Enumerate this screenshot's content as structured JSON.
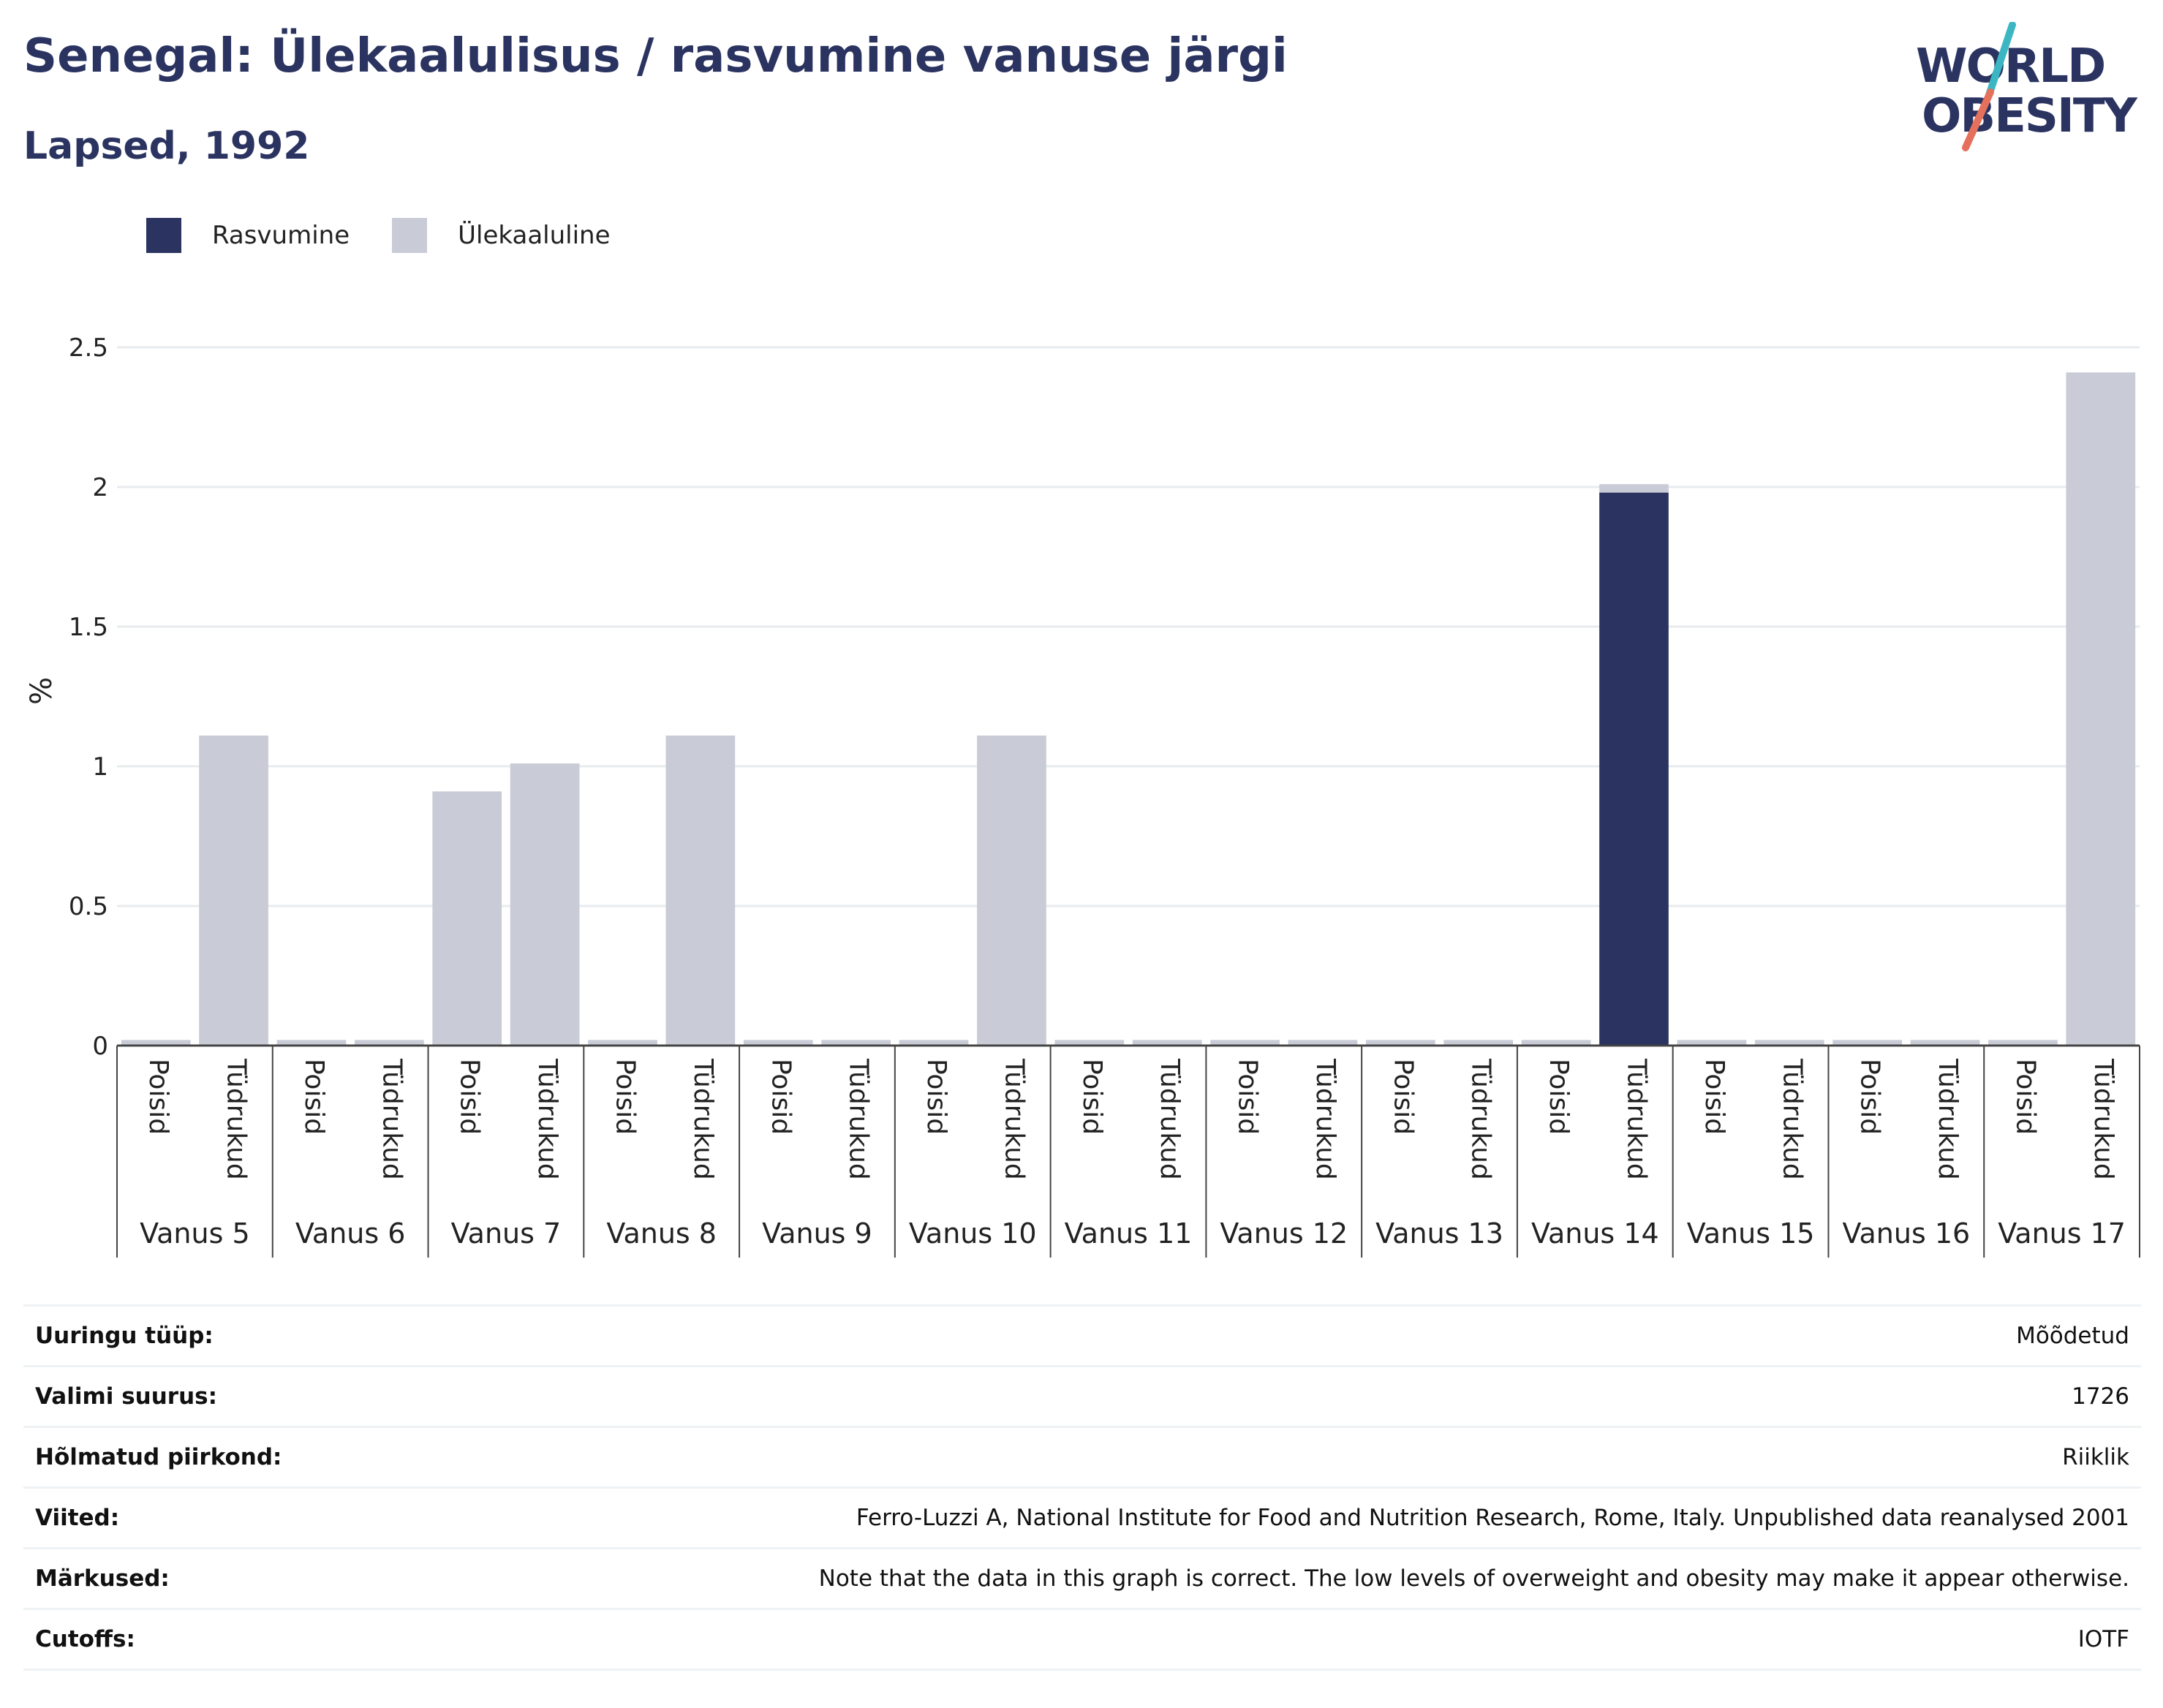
{
  "header": {
    "title": "Senegal: Ülekaalulisus / rasvumine vanuse järgi",
    "subtitle": "Lapsed, 1992",
    "logo_line1": "WORLD",
    "logo_line2": "OBESITY"
  },
  "colors": {
    "obesity": "#2b3461",
    "overweight": "#c9cbd7",
    "title": "#2b3461",
    "logo_slash_top": "#3cb6c3",
    "logo_slash_bottom": "#e5705c"
  },
  "legend": [
    {
      "label": "Rasvumine",
      "color_key": "obesity"
    },
    {
      "label": "Ülekaaluline",
      "color_key": "overweight"
    }
  ],
  "chart_data": {
    "type": "bar",
    "stacked": true,
    "title": "Senegal: Ülekaalulisus / rasvumine vanuse järgi",
    "ylabel": "%",
    "ylim": [
      0,
      2.5
    ],
    "yticks": [
      0,
      0.5,
      1,
      1.5,
      2,
      2.5
    ],
    "ytick_labels": [
      "0",
      "0.5",
      "1",
      "1.5",
      "2",
      "2.5"
    ],
    "grid": true,
    "legend_position": "top-left",
    "groups": [
      "Vanus 5",
      "Vanus 6",
      "Vanus 7",
      "Vanus 8",
      "Vanus 9",
      "Vanus 10",
      "Vanus 11",
      "Vanus 12",
      "Vanus 13",
      "Vanus 14",
      "Vanus 15",
      "Vanus 16",
      "Vanus 17"
    ],
    "subcategories": [
      "Poisid",
      "Tüdrukud"
    ],
    "series": [
      {
        "name": "Rasvumine",
        "color_key": "obesity",
        "values": [
          0,
          0,
          0,
          0,
          0,
          0,
          0,
          0,
          0,
          0,
          0,
          0,
          0,
          0,
          0,
          0,
          0,
          0,
          0,
          1.98,
          0,
          0,
          0,
          0,
          0,
          0
        ]
      },
      {
        "name": "Ülekaaluline",
        "color_key": "overweight",
        "values": [
          0.02,
          1.11,
          0.02,
          0.02,
          0.91,
          1.01,
          0.02,
          1.11,
          0.02,
          0.02,
          0.02,
          1.11,
          0.02,
          0.02,
          0.02,
          0.02,
          0.02,
          0.02,
          0.02,
          0.03,
          0.02,
          0.02,
          0.02,
          0.02,
          0.02,
          2.41
        ]
      }
    ]
  },
  "info": [
    {
      "label": "Uuringu tüüp:",
      "value": "Mõõdetud"
    },
    {
      "label": "Valimi suurus:",
      "value": "1726"
    },
    {
      "label": "Hõlmatud piirkond:",
      "value": "Riiklik"
    },
    {
      "label": "Viited:",
      "value": "Ferro-Luzzi A, National Institute for Food and Nutrition Research, Rome, Italy. Unpublished data reanalysed 2001"
    },
    {
      "label": "Märkused:",
      "value": "Note that the data in this graph is correct. The low levels of overweight and obesity may make it appear otherwise."
    },
    {
      "label": "Cutoffs:",
      "value": "IOTF"
    }
  ]
}
